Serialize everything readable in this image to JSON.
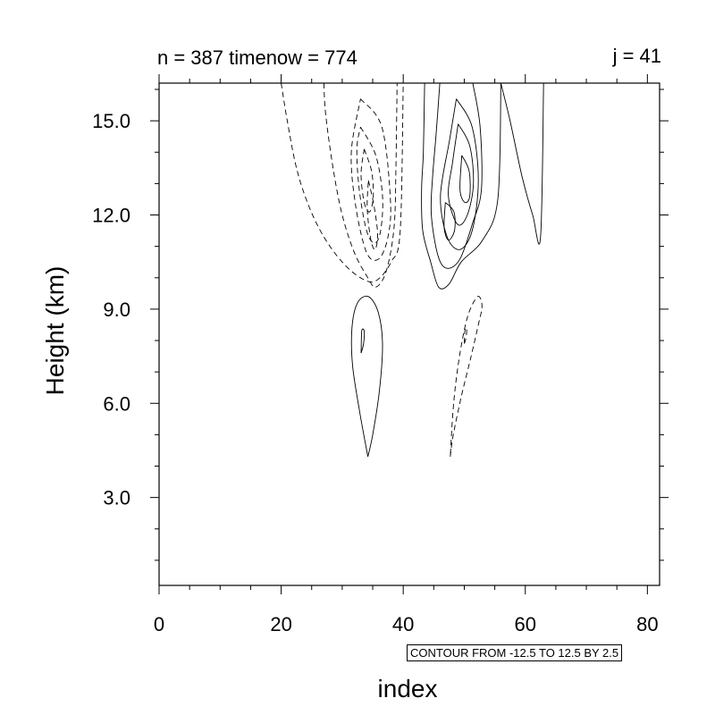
{
  "header": {
    "left_title": "n = 387 timenow = 774",
    "right_title": "j = 41"
  },
  "contour_info": "CONTOUR FROM -12.5 TO 12.5 BY 2.5",
  "chart_data": {
    "type": "contour",
    "xlabel": "index",
    "ylabel": "Height (km)",
    "xlim": [
      0,
      82
    ],
    "ylim": [
      0.2,
      16.2
    ],
    "x_ticks": [
      0,
      20,
      40,
      60,
      80
    ],
    "x_tick_labels": [
      "0",
      "20",
      "40",
      "60",
      "80"
    ],
    "y_ticks": [
      3.0,
      6.0,
      9.0,
      12.0,
      15.0
    ],
    "y_tick_labels": [
      "3.0",
      "6.0",
      "9.0",
      "12.0",
      "15.0"
    ],
    "contour_levels": {
      "min": -12.5,
      "max": 12.5,
      "step": 2.5
    },
    "grid": false,
    "line_color": "#000000",
    "negative_line_style": "dashed",
    "positive_line_style": "solid",
    "contours": [
      {
        "sign": "negative",
        "points": [
          [
            20,
            16.2
          ],
          [
            21,
            15.0
          ],
          [
            22.5,
            13.5
          ],
          [
            24.5,
            12.3
          ],
          [
            27,
            11.3
          ],
          [
            30,
            10.5
          ],
          [
            33,
            10.0
          ],
          [
            35.5,
            9.9
          ],
          [
            38,
            10.5
          ],
          [
            39.5,
            11.5
          ],
          [
            40,
            16.2
          ]
        ]
      },
      {
        "sign": "negative",
        "points": [
          [
            27,
            16.2
          ],
          [
            27.3,
            15.2
          ],
          [
            28.5,
            13.5
          ],
          [
            30,
            12.0
          ],
          [
            32,
            10.8
          ],
          [
            34.2,
            10.0
          ],
          [
            35.5,
            9.7
          ],
          [
            37.2,
            10.2
          ],
          [
            38.5,
            11.6
          ],
          [
            38.8,
            13.5
          ],
          [
            39,
            16.2
          ]
        ]
      },
      {
        "sign": "negative",
        "points": [
          [
            33,
            15.7
          ],
          [
            36.5,
            14.8
          ],
          [
            37.9,
            12.5
          ],
          [
            37.5,
            11.3
          ],
          [
            36,
            10.6
          ],
          [
            34,
            10.8
          ],
          [
            32.2,
            12.3
          ],
          [
            31.5,
            14.0
          ],
          [
            33,
            15.7
          ]
        ]
      },
      {
        "sign": "negative",
        "points": [
          [
            33,
            14.8
          ],
          [
            35.5,
            13.9
          ],
          [
            36.6,
            12.6
          ],
          [
            36.3,
            11.5
          ],
          [
            35.3,
            11.1
          ],
          [
            34,
            11.5
          ],
          [
            32.8,
            12.8
          ],
          [
            32.4,
            14.1
          ],
          [
            33,
            14.8
          ]
        ]
      },
      {
        "sign": "negative",
        "points": [
          [
            33.6,
            14.1
          ],
          [
            34.8,
            13.4
          ],
          [
            35.1,
            12.6
          ],
          [
            34.5,
            12.1
          ],
          [
            33.6,
            12.4
          ],
          [
            33.1,
            13.3
          ],
          [
            33.6,
            14.1
          ]
        ]
      },
      {
        "sign": "negative",
        "points": [
          [
            34.3,
            13.1
          ],
          [
            35.2,
            12.3
          ],
          [
            35.8,
            11.4
          ],
          [
            35.4,
            10.9
          ],
          [
            34.7,
            11.2
          ],
          [
            34.1,
            12.2
          ],
          [
            34.3,
            13.1
          ]
        ]
      },
      {
        "sign": "negative",
        "points": [
          [
            47.7,
            4.3
          ],
          [
            48.2,
            5.0
          ],
          [
            49.5,
            6.2
          ],
          [
            51,
            7.4
          ],
          [
            52.3,
            8.5
          ],
          [
            52.9,
            9.1
          ],
          [
            52.2,
            9.4
          ],
          [
            50.6,
            8.8
          ],
          [
            49.3,
            7.6
          ],
          [
            48.3,
            6.1
          ],
          [
            47.7,
            4.3
          ]
        ]
      },
      {
        "sign": "negative",
        "points": [
          [
            50,
            7.9
          ],
          [
            50.3,
            8.1
          ],
          [
            50.4,
            8.4
          ],
          [
            50.1,
            8.3
          ],
          [
            50,
            7.9
          ]
        ]
      },
      {
        "sign": "positive",
        "points": [
          [
            56,
            16.2
          ],
          [
            57.5,
            15.0
          ],
          [
            59.5,
            13.2
          ],
          [
            61.2,
            12.0
          ],
          [
            62.5,
            11.3
          ],
          [
            63,
            16.2
          ]
        ]
      },
      {
        "sign": "positive",
        "points": [
          [
            43.5,
            16.2
          ],
          [
            43.3,
            14.0
          ],
          [
            43,
            12.8
          ],
          [
            43.2,
            11.5
          ],
          [
            44.5,
            10.5
          ],
          [
            45.8,
            9.7
          ],
          [
            47.5,
            9.8
          ],
          [
            49.5,
            10.5
          ],
          [
            53,
            11.2
          ],
          [
            55.5,
            12.5
          ],
          [
            56,
            16.2
          ]
        ]
      },
      {
        "sign": "positive",
        "points": [
          [
            46,
            16.2
          ],
          [
            45.4,
            14.6
          ],
          [
            44.8,
            13.2
          ],
          [
            44.6,
            12.0
          ],
          [
            45.7,
            10.7
          ],
          [
            47.2,
            10.3
          ],
          [
            49.3,
            10.6
          ],
          [
            51.3,
            11.7
          ],
          [
            52.8,
            12.8
          ],
          [
            52.6,
            14.8
          ],
          [
            51.4,
            16.2
          ]
        ]
      },
      {
        "sign": "positive",
        "points": [
          [
            48.7,
            15.7
          ],
          [
            51.3,
            14.8
          ],
          [
            52.3,
            13.1
          ],
          [
            51.3,
            11.5
          ],
          [
            49.3,
            10.9
          ],
          [
            47.2,
            11.3
          ],
          [
            46.1,
            12.6
          ],
          [
            47.6,
            14.4
          ],
          [
            48.7,
            15.7
          ]
        ]
      },
      {
        "sign": "positive",
        "points": [
          [
            49,
            14.9
          ],
          [
            50.9,
            14.2
          ],
          [
            51.5,
            13.0
          ],
          [
            50.5,
            12.0
          ],
          [
            48.9,
            11.7
          ],
          [
            47.4,
            12.6
          ],
          [
            48.1,
            13.7
          ],
          [
            49,
            14.9
          ]
        ]
      },
      {
        "sign": "positive",
        "points": [
          [
            49.6,
            13.9
          ],
          [
            50.8,
            13.4
          ],
          [
            50.9,
            12.6
          ],
          [
            50.1,
            12.4
          ],
          [
            49.3,
            12.8
          ],
          [
            49.6,
            13.9
          ]
        ]
      },
      {
        "sign": "positive",
        "points": [
          [
            46.9,
            12.4
          ],
          [
            48.3,
            12.1
          ],
          [
            48.4,
            11.5
          ],
          [
            47.4,
            11.2
          ],
          [
            46.7,
            11.6
          ],
          [
            46.9,
            12.4
          ]
        ]
      },
      {
        "sign": "positive",
        "points": [
          [
            34.2,
            4.3
          ],
          [
            35,
            5.0
          ],
          [
            36.1,
            6.4
          ],
          [
            36.6,
            7.9
          ],
          [
            35.9,
            8.9
          ],
          [
            34.3,
            9.4
          ],
          [
            32.5,
            9.2
          ],
          [
            31.6,
            8.4
          ],
          [
            31.7,
            7.2
          ],
          [
            32.8,
            5.8
          ],
          [
            34.2,
            4.3
          ]
        ]
      },
      {
        "sign": "positive",
        "points": [
          [
            33.1,
            7.6
          ],
          [
            33.5,
            7.9
          ],
          [
            33.6,
            8.3
          ],
          [
            33.2,
            8.3
          ],
          [
            33.1,
            7.6
          ]
        ]
      }
    ]
  }
}
